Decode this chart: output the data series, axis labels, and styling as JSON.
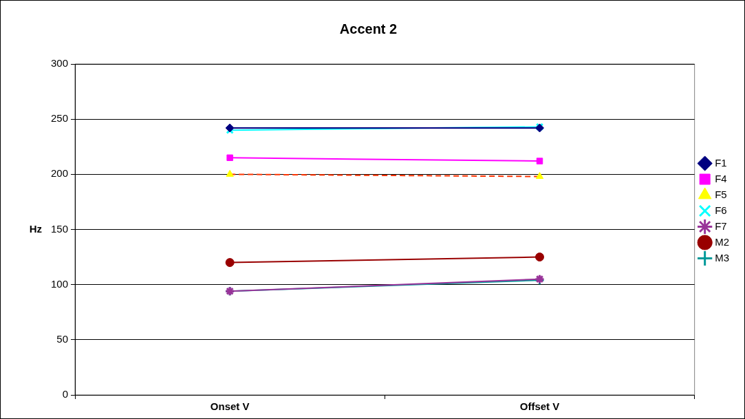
{
  "chart_data": {
    "type": "line",
    "title": "Accent 2",
    "ylabel": "Hz",
    "categories": [
      "Onset V",
      "Offset V"
    ],
    "series": [
      {
        "name": "F1",
        "color": "#000080",
        "marker": "diamond",
        "values": [
          242,
          242
        ]
      },
      {
        "name": "F4",
        "color": "#ff00ff",
        "marker": "square",
        "values": [
          215,
          212
        ]
      },
      {
        "name": "F5",
        "color": "#ff3300",
        "colors": [
          "#ffff00",
          "#ffff00"
        ],
        "marker": "triangle",
        "line_style": "dashed",
        "values": [
          200,
          198
        ]
      },
      {
        "name": "F6",
        "color": "#00ffff",
        "marker": "cross",
        "values": [
          240,
          243
        ]
      },
      {
        "name": "F7",
        "color": "#993399",
        "marker": "cross",
        "values": [
          94,
          105
        ]
      },
      {
        "name": "M2",
        "color": "#990000",
        "marker": "circle",
        "values": [
          120,
          125
        ]
      },
      {
        "name": "M3",
        "color": "#009999",
        "marker": "plus",
        "values": [
          94,
          104
        ]
      }
    ],
    "ylim": [
      0,
      300
    ],
    "yticks": [
      0,
      50,
      100,
      150,
      200,
      250,
      300
    ],
    "grid": "y",
    "legend": "right"
  }
}
